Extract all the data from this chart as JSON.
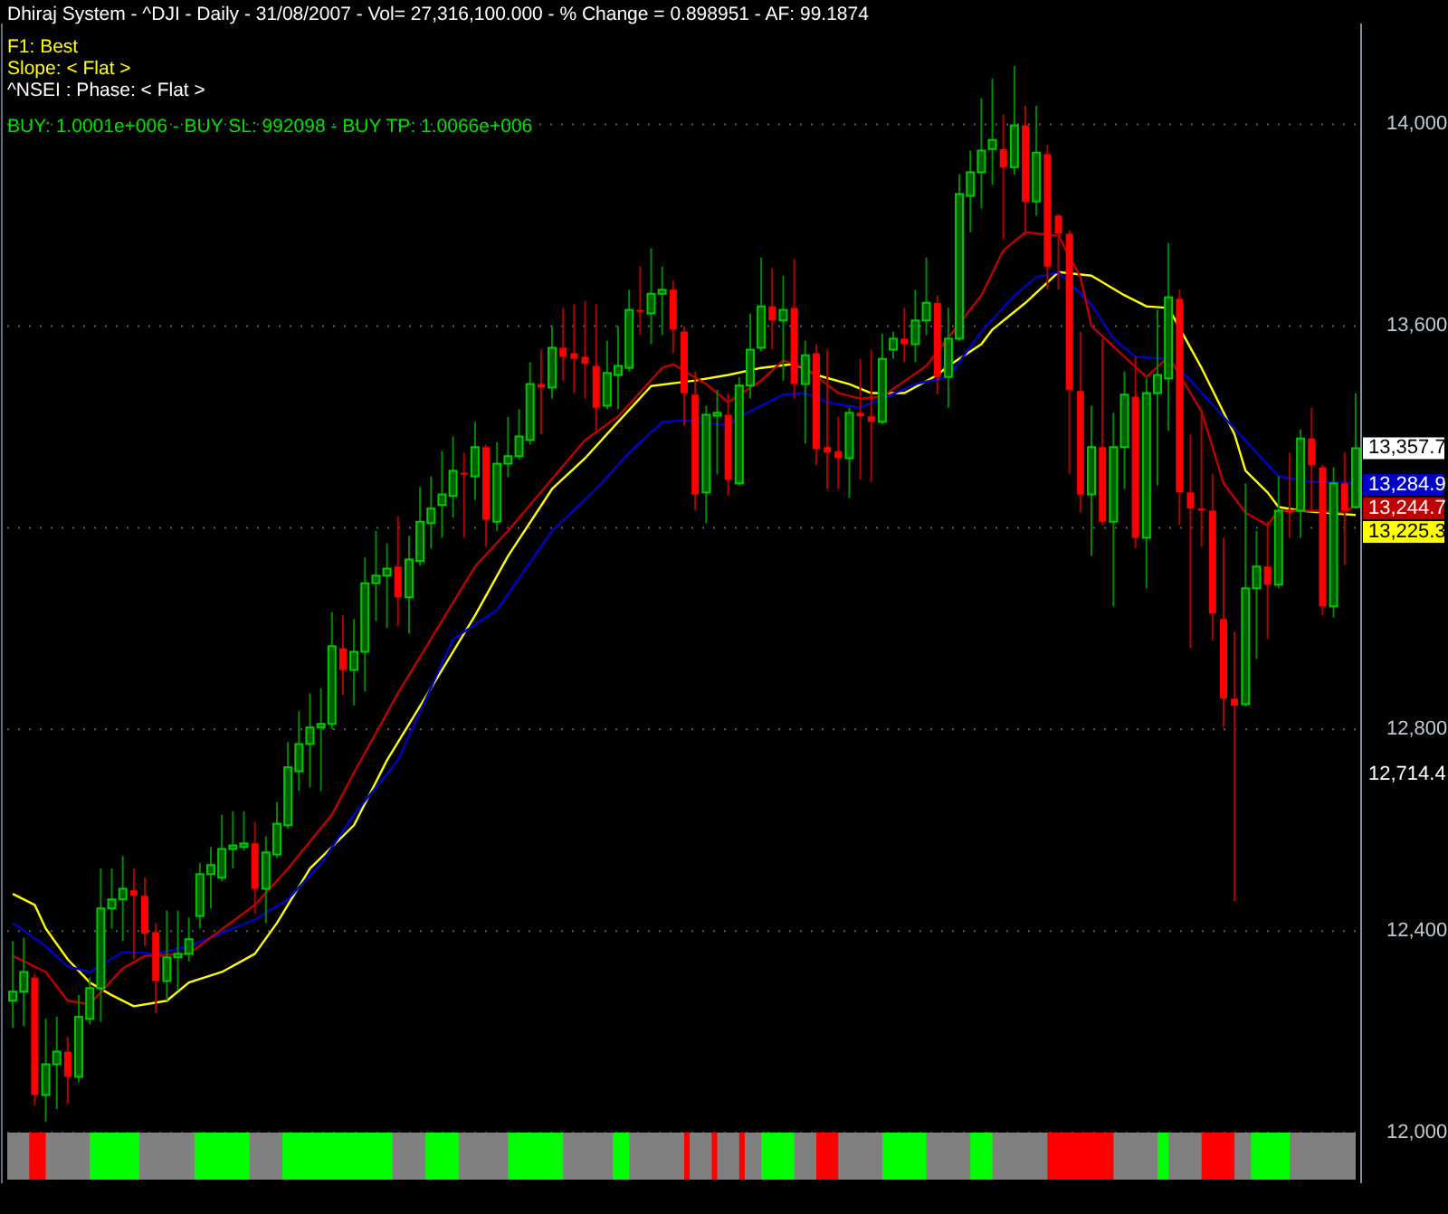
{
  "chart_data": {
    "type": "candlestick",
    "title": "Dhiraj System - ^DJI - Daily - 31/08/2007 - Vol= 27,316,100.000 - % Change = 0.898951 - AF: 99.1874",
    "annotations": [
      "F1: Best",
      "Slope: < Flat >",
      "^NSEI : Phase: < Flat >",
      "BUY: 1.0001e+006 - BUY SL: 992098 - BUY TP: 1.0066e+006",
      "13,357.7",
      "12,714.4"
    ],
    "categories": [
      null,
      null,
      null,
      null,
      null,
      null,
      null,
      null,
      null,
      null,
      null,
      null,
      null,
      null,
      null,
      null,
      null,
      null,
      null,
      null,
      null,
      null,
      null,
      null,
      null,
      null,
      null,
      null,
      null,
      null,
      null,
      null,
      null,
      null,
      null,
      null,
      null,
      null,
      null,
      null,
      null,
      null,
      null,
      null,
      null,
      null,
      null,
      null,
      null,
      null,
      null,
      null,
      null,
      null,
      null,
      null,
      null,
      null,
      null,
      null,
      null,
      null,
      null,
      null,
      null,
      null,
      null,
      null,
      null,
      null,
      null,
      null,
      null,
      null,
      null,
      null,
      null,
      null,
      null,
      null,
      null,
      null,
      null,
      null,
      null,
      null,
      null,
      null,
      null,
      null,
      null,
      null,
      null,
      null,
      null,
      null,
      null,
      null,
      null,
      null,
      null,
      null,
      null,
      null,
      null,
      null,
      null,
      null,
      null,
      null,
      null,
      null,
      null,
      null,
      null,
      null,
      null,
      null,
      null,
      null,
      null,
      null,
      null
    ],
    "ohlc": [
      [
        12262,
        12380,
        12208,
        12280
      ],
      [
        12280,
        12387,
        12212,
        12319
      ],
      [
        12308,
        12316,
        12054,
        12075
      ],
      [
        12075,
        12226,
        12022,
        12136
      ],
      [
        12136,
        12230,
        12047,
        12161
      ],
      [
        12161,
        12190,
        12057,
        12111
      ],
      [
        12111,
        12273,
        12100,
        12230
      ],
      [
        12226,
        12308,
        12215,
        12287
      ],
      [
        12287,
        12524,
        12220,
        12445
      ],
      [
        12445,
        12524,
        12405,
        12463
      ],
      [
        12463,
        12549,
        12380,
        12484
      ],
      [
        12481,
        12524,
        12344,
        12470
      ],
      [
        12470,
        12506,
        12370,
        12395
      ],
      [
        12398,
        12416,
        12237,
        12301
      ],
      [
        12301,
        12441,
        12262,
        12348
      ],
      [
        12348,
        12441,
        12283,
        12355
      ],
      [
        12355,
        12427,
        12340,
        12384
      ],
      [
        12430,
        12535,
        12405,
        12513
      ],
      [
        12513,
        12567,
        12445,
        12531
      ],
      [
        12506,
        12631,
        12499,
        12563
      ],
      [
        12563,
        12638,
        12524,
        12570
      ],
      [
        12567,
        12638,
        12560,
        12574
      ],
      [
        12574,
        12617,
        12434,
        12484
      ],
      [
        12484,
        12588,
        12416,
        12556
      ],
      [
        12552,
        12656,
        12545,
        12613
      ],
      [
        12610,
        12775,
        12603,
        12725
      ],
      [
        12717,
        12836,
        12678,
        12771
      ],
      [
        12771,
        12872,
        12685,
        12804
      ],
      [
        12804,
        12882,
        12678,
        12811
      ],
      [
        12811,
        13033,
        12800,
        12965
      ],
      [
        12961,
        13026,
        12868,
        12918
      ],
      [
        12918,
        13019,
        12847,
        12954
      ],
      [
        12954,
        13141,
        12875,
        13090
      ],
      [
        13090,
        13194,
        13015,
        13105
      ],
      [
        13105,
        13169,
        13001,
        13119
      ],
      [
        13123,
        13223,
        13004,
        13062
      ],
      [
        13062,
        13184,
        12990,
        13137
      ],
      [
        13134,
        13281,
        13125,
        13212
      ],
      [
        13209,
        13302,
        13159,
        13238
      ],
      [
        13245,
        13352,
        13180,
        13266
      ],
      [
        13263,
        13381,
        13220,
        13313
      ],
      [
        13309,
        13349,
        13180,
        13306
      ],
      [
        13302,
        13410,
        13255,
        13360
      ],
      [
        13360,
        13365,
        13162,
        13216
      ],
      [
        13212,
        13370,
        13194,
        13327
      ],
      [
        13327,
        13420,
        13300,
        13342
      ],
      [
        13342,
        13435,
        13335,
        13381
      ],
      [
        13374,
        13528,
        13365,
        13485
      ],
      [
        13485,
        13553,
        13385,
        13478
      ],
      [
        13478,
        13600,
        13456,
        13557
      ],
      [
        13557,
        13636,
        13492,
        13539
      ],
      [
        13546,
        13643,
        13467,
        13535
      ],
      [
        13539,
        13650,
        13456,
        13525
      ],
      [
        13521,
        13643,
        13392,
        13438
      ],
      [
        13442,
        13571,
        13435,
        13507
      ],
      [
        13503,
        13600,
        13435,
        13521
      ],
      [
        13517,
        13672,
        13510,
        13632
      ],
      [
        13632,
        13718,
        13582,
        13629
      ],
      [
        13625,
        13754,
        13564,
        13664
      ],
      [
        13664,
        13718,
        13582,
        13672
      ],
      [
        13672,
        13690,
        13546,
        13593
      ],
      [
        13589,
        13600,
        13403,
        13467
      ],
      [
        13464,
        13510,
        13234,
        13266
      ],
      [
        13270,
        13442,
        13209,
        13424
      ],
      [
        13422,
        13474,
        13306,
        13428
      ],
      [
        13424,
        13467,
        13263,
        13295
      ],
      [
        13288,
        13499,
        13284,
        13482
      ],
      [
        13482,
        13625,
        13456,
        13553
      ],
      [
        13557,
        13736,
        13550,
        13639
      ],
      [
        13639,
        13715,
        13553,
        13611
      ],
      [
        13611,
        13700,
        13492,
        13632
      ],
      [
        13636,
        13733,
        13456,
        13485
      ],
      [
        13485,
        13571,
        13367,
        13542
      ],
      [
        13546,
        13564,
        13324,
        13356
      ],
      [
        13360,
        13553,
        13277,
        13349
      ],
      [
        13352,
        13420,
        13277,
        13338
      ],
      [
        13338,
        13438,
        13259,
        13428
      ],
      [
        13428,
        13535,
        13295,
        13421
      ],
      [
        13421,
        13553,
        13291,
        13410
      ],
      [
        13410,
        13585,
        13405,
        13535
      ],
      [
        13553,
        13589,
        13535,
        13575
      ],
      [
        13575,
        13636,
        13528,
        13564
      ],
      [
        13564,
        13672,
        13528,
        13611
      ],
      [
        13611,
        13736,
        13582,
        13646
      ],
      [
        13646,
        13661,
        13464,
        13499
      ],
      [
        13499,
        13636,
        13438,
        13575
      ],
      [
        13575,
        13901,
        13570,
        13862
      ],
      [
        13858,
        13948,
        13786,
        13905
      ],
      [
        13905,
        14052,
        13833,
        13948
      ],
      [
        13951,
        14091,
        13880,
        13969
      ],
      [
        13951,
        14020,
        13772,
        13915
      ],
      [
        13915,
        14116,
        13900,
        13998
      ],
      [
        13998,
        14037,
        13779,
        13847
      ],
      [
        13847,
        14037,
        13819,
        13944
      ],
      [
        13941,
        13959,
        13672,
        13718
      ],
      [
        13819,
        13822,
        13672,
        13783
      ],
      [
        13783,
        13790,
        13306,
        13474
      ],
      [
        13471,
        13589,
        13230,
        13266
      ],
      [
        13266,
        13442,
        13144,
        13360
      ],
      [
        13360,
        13575,
        13205,
        13212
      ],
      [
        13212,
        13428,
        13044,
        13360
      ],
      [
        13360,
        13510,
        13277,
        13464
      ],
      [
        13460,
        13539,
        13159,
        13180
      ],
      [
        13180,
        13496,
        13080,
        13467
      ],
      [
        13467,
        13632,
        13284,
        13503
      ],
      [
        13496,
        13765,
        13392,
        13657
      ],
      [
        13654,
        13672,
        13205,
        13270
      ],
      [
        13270,
        13385,
        12961,
        13238
      ],
      [
        13238,
        13435,
        13162,
        13234
      ],
      [
        13234,
        13306,
        12976,
        13030
      ],
      [
        13019,
        13180,
        12804,
        12861
      ],
      [
        12861,
        12994,
        12459,
        12847
      ],
      [
        12850,
        13288,
        12845,
        13080
      ],
      [
        13080,
        13194,
        12940,
        13123
      ],
      [
        13123,
        13212,
        12979,
        13087
      ],
      [
        13087,
        13302,
        13080,
        13234
      ],
      [
        13234,
        13349,
        13180,
        13230
      ],
      [
        13234,
        13395,
        13180,
        13377
      ],
      [
        13377,
        13438,
        13234,
        13324
      ],
      [
        13320,
        13325,
        13026,
        13044
      ],
      [
        13044,
        13320,
        13022,
        13288
      ],
      [
        13288,
        13349,
        13126,
        13234
      ],
      [
        13241,
        13467,
        13238,
        13357.7
      ]
    ],
    "series": [
      {
        "type": "line",
        "color": "#ffff00",
        "values": [
          12474,
          null,
          12452,
          12405,
          null,
          12344,
          null,
          12298,
          null,
          12273,
          null,
          12251,
          null,
          null,
          12262,
          null,
          12298,
          null,
          null,
          12319,
          null,
          null,
          12355,
          null,
          12416,
          null,
          null,
          12524,
          null,
          null,
          null,
          12610,
          null,
          null,
          12739,
          null,
          null,
          null,
          12882,
          null,
          null,
          null,
          13026,
          null,
          null,
          13144,
          null,
          null,
          null,
          13277,
          null,
          null,
          13338,
          null,
          null,
          13410,
          null,
          null,
          13481,
          null,
          null,
          null,
          13492,
          null,
          null,
          13503,
          null,
          null,
          13517,
          null,
          null,
          13525,
          null,
          13503,
          null,
          null,
          13485,
          null,
          13467,
          null,
          null,
          13467,
          null,
          null,
          13503,
          13521,
          null,
          null,
          13564,
          13593,
          null,
          null,
          13646,
          null,
          null,
          13707,
          null,
          null,
          13700,
          null,
          null,
          13661,
          null,
          13639,
          null,
          13636,
          null,
          null,
          13517,
          null,
          null,
          13385,
          13313,
          null,
          13270,
          13241,
          null,
          13234,
          null,
          13230,
          null,
          null,
          13225.3
        ],
        "value_labels": [
          null,
          null,
          null,
          null,
          null,
          null,
          null,
          null,
          null,
          null,
          null,
          null,
          null,
          null,
          null,
          null,
          null,
          null,
          null,
          null,
          null,
          null,
          null,
          null,
          null,
          null,
          null,
          null,
          null,
          null,
          null,
          null,
          null,
          null,
          null,
          null,
          null,
          null,
          null,
          null,
          null,
          null,
          null,
          null,
          null,
          null,
          null,
          null,
          null,
          null,
          null,
          null,
          null,
          null,
          null,
          null,
          null,
          null,
          null,
          null,
          null,
          null,
          null,
          null,
          null,
          null,
          null,
          null,
          null,
          null,
          null,
          null,
          null,
          null,
          null,
          null,
          null,
          null,
          null,
          null,
          null,
          null,
          null,
          null,
          null,
          null,
          null,
          null,
          null,
          null,
          null,
          null,
          null,
          null,
          null,
          null,
          null,
          null,
          null,
          null,
          null,
          null,
          null,
          null,
          null,
          null,
          null,
          null,
          null,
          null,
          null,
          null,
          null,
          null,
          null,
          null,
          null,
          null,
          null,
          null,
          null,
          null,
          "13,225.3"
        ]
      },
      {
        "type": "line",
        "color": "#0000c8",
        "values": [
          12416,
          null,
          null,
          12370,
          null,
          12330,
          null,
          12319,
          null,
          null,
          12359,
          null,
          null,
          12355,
          null,
          null,
          12370,
          null,
          null,
          null,
          null,
          null,
          12423,
          null,
          null,
          12463,
          null,
          null,
          12534,
          null,
          null,
          12631,
          null,
          null,
          null,
          12739,
          null,
          null,
          null,
          null,
          12979,
          null,
          null,
          null,
          13037,
          null,
          null,
          null,
          null,
          13194,
          null,
          null,
          null,
          13277,
          null,
          null,
          13349,
          null,
          null,
          13410,
          null,
          13413,
          null,
          null,
          null,
          13403,
          13420,
          null,
          null,
          null,
          13464,
          null,
          13467,
          null,
          13449,
          null,
          null,
          13438,
          null,
          13456,
          null,
          null,
          13485,
          null,
          null,
          13499,
          null,
          null,
          13589,
          null,
          null,
          13661,
          null,
          13697,
          null,
          13707,
          null,
          null,
          13643,
          null,
          13575,
          null,
          13539,
          null,
          null,
          13535,
          null,
          13492,
          null,
          null,
          13420,
          null,
          null,
          13349,
          null,
          13302,
          null,
          null,
          13291,
          null,
          null,
          13291,
          13284.9
        ],
        "value_labels": [
          null,
          null,
          null,
          null,
          null,
          null,
          null,
          null,
          null,
          null,
          null,
          null,
          null,
          null,
          null,
          null,
          null,
          null,
          null,
          null,
          null,
          null,
          null,
          null,
          null,
          null,
          null,
          null,
          null,
          null,
          null,
          null,
          null,
          null,
          null,
          null,
          null,
          null,
          null,
          null,
          null,
          null,
          null,
          null,
          null,
          null,
          null,
          null,
          null,
          null,
          null,
          null,
          null,
          null,
          null,
          null,
          null,
          null,
          null,
          null,
          null,
          null,
          null,
          null,
          null,
          null,
          null,
          null,
          null,
          null,
          null,
          null,
          null,
          null,
          null,
          null,
          null,
          null,
          null,
          null,
          null,
          null,
          null,
          null,
          null,
          null,
          null,
          null,
          null,
          null,
          null,
          null,
          null,
          null,
          null,
          null,
          null,
          null,
          null,
          null,
          null,
          null,
          null,
          null,
          null,
          null,
          null,
          null,
          null,
          null,
          null,
          null,
          null,
          null,
          null,
          null,
          null,
          null,
          null,
          null,
          null,
          null,
          "13,284.9"
        ]
      },
      {
        "type": "line",
        "color": "#c00000",
        "values": [
          12351,
          null,
          null,
          12319,
          null,
          12262,
          null,
          12255,
          null,
          null,
          12326,
          null,
          12351,
          null,
          null,
          null,
          12355,
          null,
          null,
          null,
          null,
          null,
          12452,
          null,
          null,
          12524,
          null,
          null,
          null,
          12631,
          null,
          12714,
          null,
          null,
          null,
          12872,
          null,
          null,
          null,
          null,
          null,
          null,
          13123,
          null,
          null,
          13194,
          null,
          null,
          null,
          null,
          null,
          null,
          13374,
          null,
          null,
          13421,
          null,
          null,
          null,
          13517,
          13524,
          null,
          null,
          13485,
          null,
          13449,
          null,
          null,
          13492,
          null,
          13532,
          null,
          13517,
          null,
          null,
          13467,
          null,
          13456,
          null,
          13460,
          null,
          null,
          null,
          13521,
          null,
          null,
          null,
          null,
          13661,
          null,
          13750,
          null,
          13786,
          null,
          null,
          13779,
          null,
          13697,
          13600,
          null,
          null,
          13539,
          null,
          13499,
          null,
          13539,
          null,
          null,
          13431,
          null,
          13288,
          null,
          13230,
          null,
          13205,
          13234,
          null,
          null,
          13234,
          null,
          null,
          13230,
          13244.7
        ],
        "value_labels": [
          null,
          null,
          null,
          null,
          null,
          null,
          null,
          null,
          null,
          null,
          null,
          null,
          null,
          null,
          null,
          null,
          null,
          null,
          null,
          null,
          null,
          null,
          null,
          null,
          null,
          null,
          null,
          null,
          null,
          null,
          null,
          null,
          null,
          null,
          null,
          null,
          null,
          null,
          null,
          null,
          null,
          null,
          null,
          null,
          null,
          null,
          null,
          null,
          null,
          null,
          null,
          null,
          null,
          null,
          null,
          null,
          null,
          null,
          null,
          null,
          null,
          null,
          null,
          null,
          null,
          null,
          null,
          null,
          null,
          null,
          null,
          null,
          null,
          null,
          null,
          null,
          null,
          null,
          null,
          null,
          null,
          null,
          null,
          null,
          null,
          null,
          null,
          null,
          null,
          null,
          null,
          null,
          null,
          null,
          null,
          null,
          null,
          null,
          null,
          null,
          null,
          null,
          null,
          null,
          null,
          null,
          null,
          null,
          null,
          null,
          null,
          null,
          null,
          null,
          null,
          null,
          null,
          null,
          null,
          null,
          null,
          null,
          "13,244.7"
        ]
      }
    ],
    "ylim": [
      11900,
      14200
    ],
    "yticks": [
      {
        "value": 12000,
        "label": "12,000"
      },
      {
        "value": 12400,
        "label": "12,400"
      },
      {
        "value": 12800,
        "label": "12,800"
      },
      {
        "value": 13200,
        "label": null
      },
      {
        "value": 13600,
        "label": "13,600"
      },
      {
        "value": 14000,
        "label": "14,000"
      }
    ],
    "grid": "y",
    "tick_labels": "y"
  }
}
